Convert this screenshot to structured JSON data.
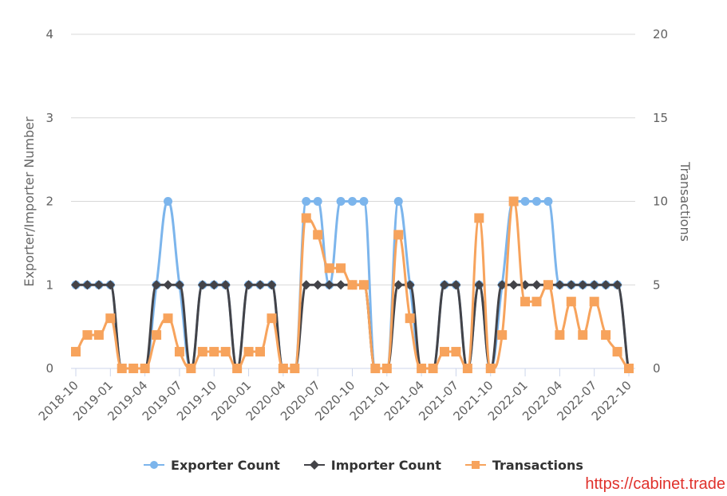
{
  "chart_data": {
    "type": "line",
    "title": "",
    "x": [
      "2018-10",
      "2018-11",
      "2018-12",
      "2019-01",
      "2019-02",
      "2019-03",
      "2019-04",
      "2019-05",
      "2019-06",
      "2019-07",
      "2019-08",
      "2019-09",
      "2019-10",
      "2019-11",
      "2019-12",
      "2020-01",
      "2020-02",
      "2020-03",
      "2020-04",
      "2020-05",
      "2020-06",
      "2020-07",
      "2020-08",
      "2020-09",
      "2020-10",
      "2020-11",
      "2020-12",
      "2021-01",
      "2021-02",
      "2021-03",
      "2021-04",
      "2021-05",
      "2021-06",
      "2021-07",
      "2021-08",
      "2021-09",
      "2021-10",
      "2021-11",
      "2021-12",
      "2022-01",
      "2022-02",
      "2022-03",
      "2022-04",
      "2022-05",
      "2022-06",
      "2022-07",
      "2022-08",
      "2022-09",
      "2022-10"
    ],
    "xtick_labels": [
      "2018-10",
      "2019-01",
      "2019-04",
      "2019-07",
      "2019-10",
      "2020-01",
      "2020-04",
      "2020-07",
      "2020-10",
      "2021-01",
      "2021-04",
      "2021-07",
      "2021-10",
      "2022-01",
      "2022-04",
      "2022-07",
      "2022-10"
    ],
    "series": [
      {
        "name": "Exporter Count",
        "axis": "left",
        "color": "#7cb5ec",
        "marker": "circle",
        "values": [
          1,
          1,
          1,
          1,
          0,
          0,
          0,
          1,
          2,
          1,
          0,
          1,
          1,
          1,
          0,
          1,
          1,
          1,
          0,
          0,
          2,
          2,
          1,
          2,
          2,
          2,
          0,
          0,
          2,
          1,
          0,
          0,
          1,
          1,
          0,
          1,
          0,
          1,
          2,
          2,
          2,
          2,
          1,
          1,
          1,
          1,
          1,
          1,
          0
        ]
      },
      {
        "name": "Importer Count",
        "axis": "left",
        "color": "#434348",
        "marker": "diamond",
        "values": [
          1,
          1,
          1,
          1,
          0,
          0,
          0,
          1,
          1,
          1,
          0,
          1,
          1,
          1,
          0,
          1,
          1,
          1,
          0,
          0,
          1,
          1,
          1,
          1,
          1,
          1,
          0,
          0,
          1,
          1,
          0,
          0,
          1,
          1,
          0,
          1,
          0,
          1,
          1,
          1,
          1,
          1,
          1,
          1,
          1,
          1,
          1,
          1,
          0
        ]
      },
      {
        "name": "Transactions",
        "axis": "right",
        "color": "#f7a35c",
        "marker": "square",
        "values": [
          1,
          2,
          2,
          3,
          0,
          0,
          0,
          2,
          3,
          1,
          0,
          1,
          1,
          1,
          0,
          1,
          1,
          3,
          0,
          0,
          9,
          8,
          6,
          6,
          5,
          5,
          0,
          0,
          8,
          3,
          0,
          0,
          1,
          1,
          0,
          9,
          0,
          2,
          10,
          4,
          4,
          5,
          2,
          4,
          2,
          4,
          2,
          1,
          0
        ]
      }
    ],
    "ylabel": "Exporter/Importer Number",
    "ylabel_right": "Transactions",
    "ylim": [
      0,
      4
    ],
    "ylim_right": [
      0,
      20
    ],
    "yticks": [
      0,
      1,
      2,
      3,
      4
    ],
    "yticks_right": [
      0,
      5,
      10,
      15,
      20
    ],
    "grid": true,
    "legend_position": "bottom"
  },
  "legend": {
    "items": [
      {
        "label": "Exporter Count",
        "color": "#7cb5ec"
      },
      {
        "label": "Importer Count",
        "color": "#434348"
      },
      {
        "label": "Transactions",
        "color": "#f7a35c"
      }
    ]
  },
  "watermark": "https://cabinet.trade"
}
